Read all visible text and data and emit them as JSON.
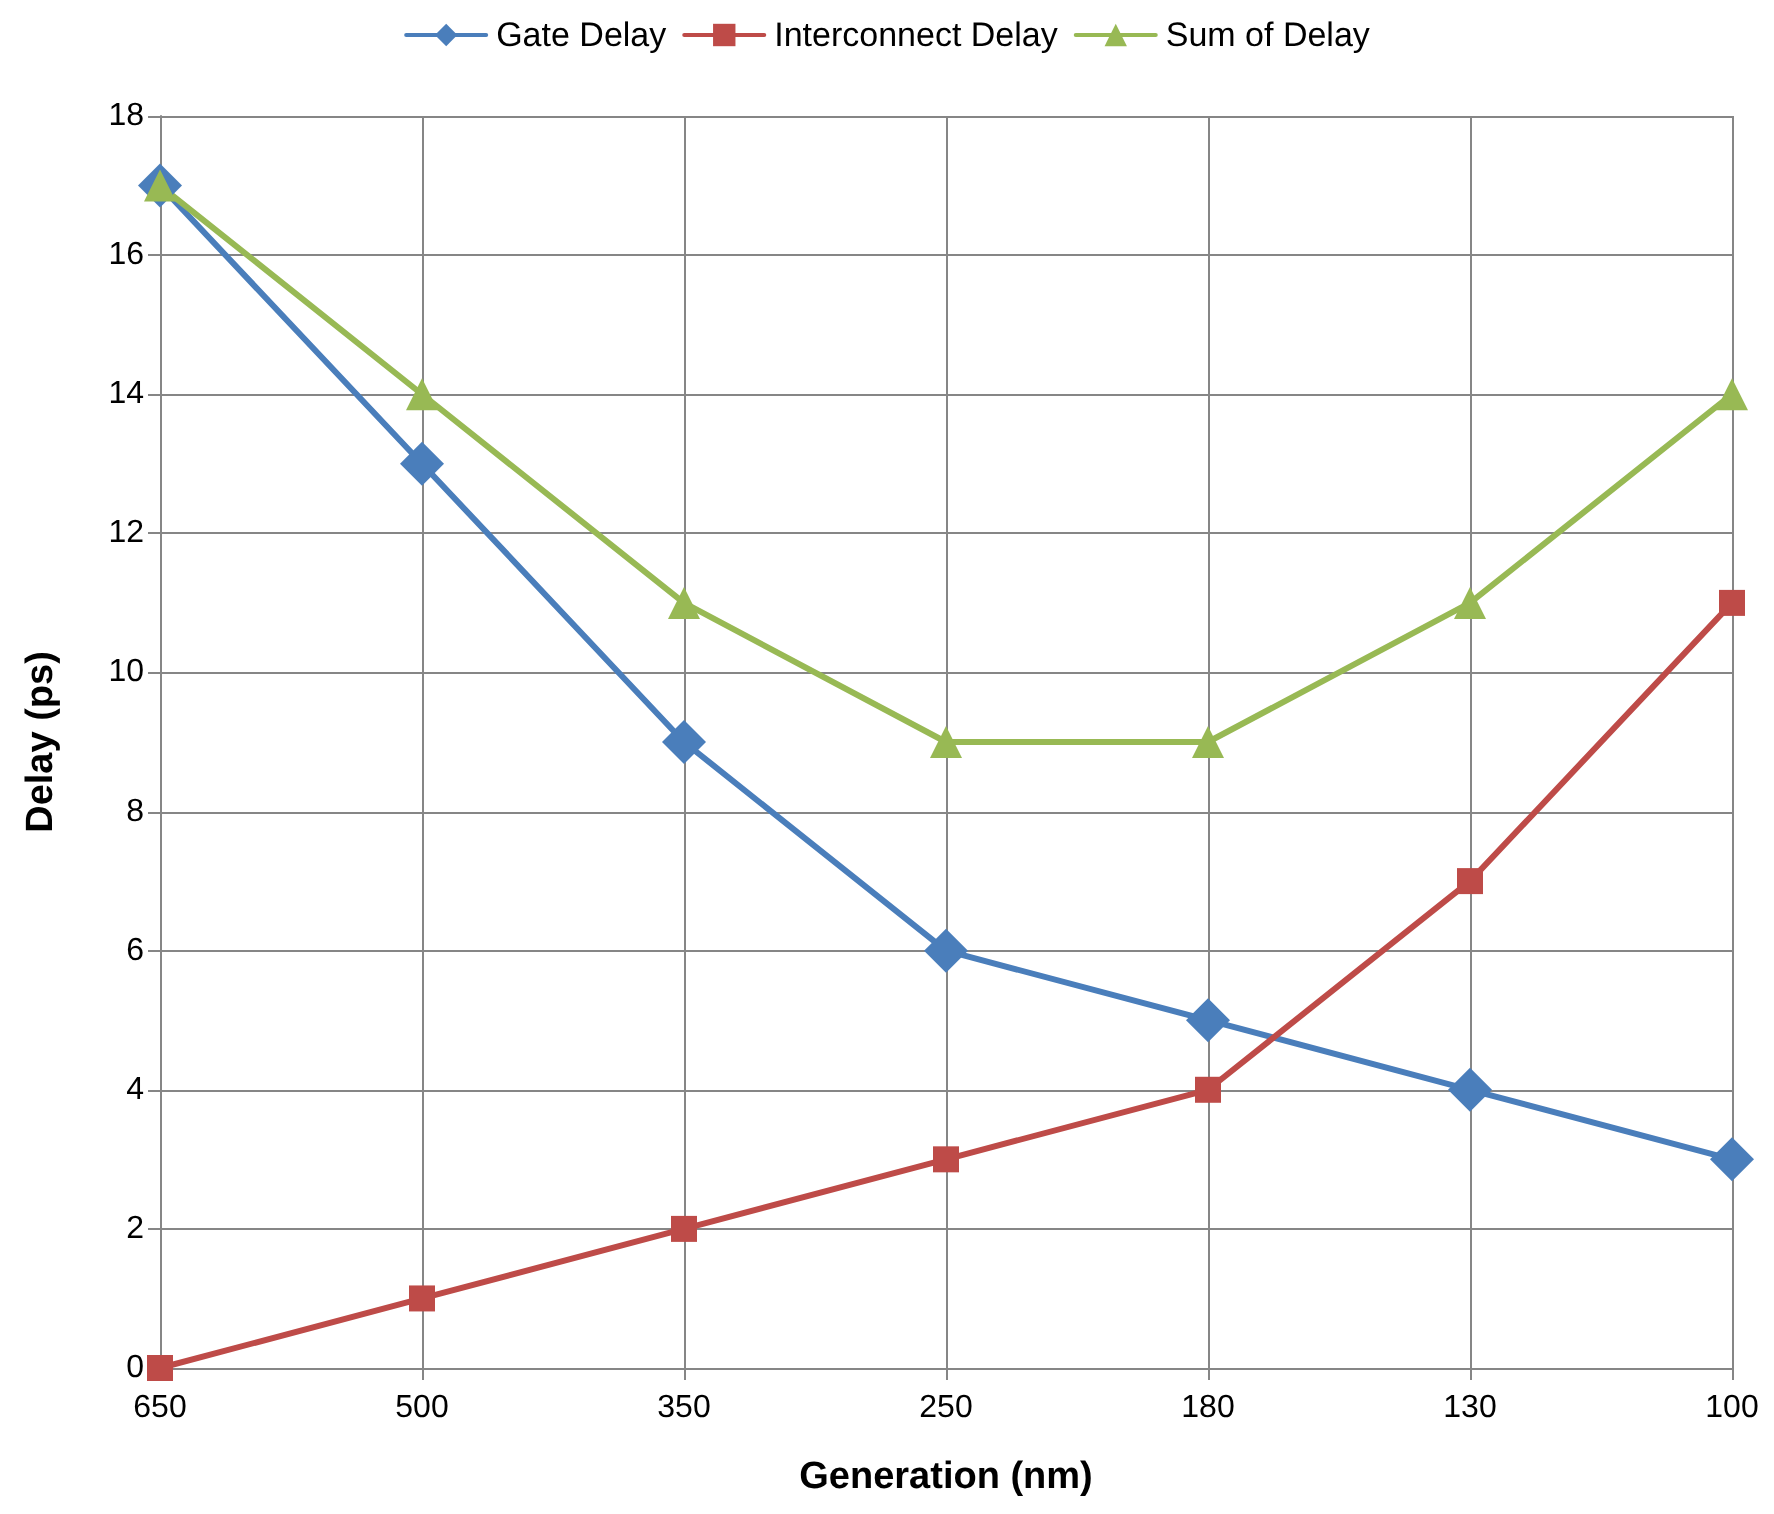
{
  "chart_data": {
    "type": "line",
    "xlabel": "Generation (nm)",
    "ylabel": "Delay (ps)",
    "categories": [
      "650",
      "500",
      "350",
      "250",
      "180",
      "130",
      "100"
    ],
    "series": [
      {
        "name": "Gate Delay",
        "color": "#4a7ebb",
        "marker": "diamond",
        "values": [
          17,
          13,
          9,
          6,
          5,
          4,
          3
        ]
      },
      {
        "name": "Interconnect Delay",
        "color": "#be4b48",
        "marker": "square",
        "values": [
          0,
          1,
          2,
          3,
          4,
          7,
          11
        ]
      },
      {
        "name": "Sum of Delay",
        "color": "#98b954",
        "marker": "triangle",
        "values": [
          17,
          14,
          11,
          9,
          9,
          11,
          14
        ]
      }
    ],
    "ylim": [
      0,
      18
    ],
    "yticks": [
      0,
      2,
      4,
      6,
      8,
      10,
      12,
      14,
      16,
      18
    ],
    "grid": true,
    "legend": "top",
    "line_style": "solid"
  }
}
